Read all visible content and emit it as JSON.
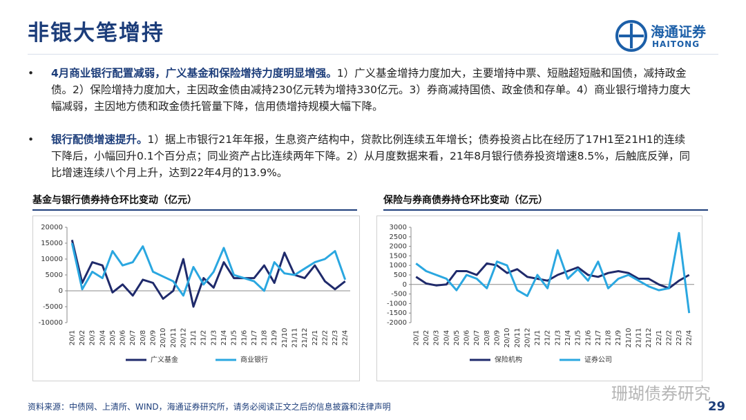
{
  "header": {
    "title": "非银大笔增持",
    "logo_cn": "海通证券",
    "logo_en": "HAITONG"
  },
  "bullets": [
    {
      "lead": "4月商业银行配置减弱，广义基金和保险增持力度明显增强。",
      "text": "1）广义基金增持力度加大，主要增持中票、短融超短融和国债，减持政金债。2）保险增持力度加大，主因政金债由减持230亿元转为增持330亿元。3）券商减持国债、政金债和存单。4）商业银行增持力度大幅减弱，主因地方债和政金债托管量下降，信用债增持规模大幅下降。"
    },
    {
      "lead": "银行配债增速提升。",
      "text": "1）据上市银行21年年报，生息资产结构中，贷款比例连续五年增长；债券投资占比在经历了17H1至21H1的连续下降后，小幅回升0.1个百分点；同业资产占比连续两年下降。2）从月度数据来看，21年8月银行债券投资增速8.5%，后触底反弹，同比增速连续八个月上升，达到22年4月的13.9%。"
    }
  ],
  "chart_data": [
    {
      "type": "line",
      "title": "基金与银行债券持仓环比变动（亿元）",
      "categories": [
        "20/1",
        "20/2",
        "20/3",
        "20/4",
        "20/5",
        "20/6",
        "20/7",
        "20/8",
        "20/9",
        "20/10",
        "20/11",
        "20/12",
        "21/1",
        "21/2",
        "21/3",
        "21/4",
        "21/5",
        "21/6",
        "21/7",
        "21/8",
        "21/9",
        "21/10",
        "21/11",
        "21/12",
        "22/1",
        "22/2",
        "22/3",
        "22/4"
      ],
      "series": [
        {
          "name": "广义基金",
          "color": "#1f2a6b",
          "values": [
            16000,
            2500,
            9000,
            8000,
            -500,
            2000,
            -1500,
            3500,
            2500,
            -2500,
            0,
            10000,
            -5000,
            4000,
            1000,
            9000,
            4000,
            4000,
            4000,
            8000,
            2500,
            12000,
            5000,
            4000,
            8000,
            3000,
            500,
            3000
          ]
        },
        {
          "name": "商业银行",
          "color": "#2aa7e0",
          "values": [
            15000,
            500,
            6000,
            4000,
            12500,
            8000,
            9000,
            14000,
            6000,
            4500,
            3000,
            -1500,
            7500,
            2000,
            6000,
            13500,
            5000,
            4000,
            3000,
            0,
            9000,
            5500,
            5000,
            7000,
            9000,
            10000,
            12500,
            3500
          ]
        }
      ],
      "ylim": [
        -10000,
        20000
      ],
      "yticks": [
        -10000,
        -5000,
        0,
        5000,
        10000,
        15000,
        20000
      ],
      "legend": "bottom"
    },
    {
      "type": "line",
      "title": "保险与券商债券持仓环比变动（亿元）",
      "categories": [
        "20/1",
        "20/2",
        "20/3",
        "20/4",
        "20/5",
        "20/6",
        "20/7",
        "20/8",
        "20/9",
        "20/10",
        "20/11",
        "20/12",
        "21/1",
        "21/2",
        "21/3",
        "21/4",
        "21/5",
        "21/6",
        "21/7",
        "21/8",
        "21/9",
        "21/10",
        "21/11",
        "21/12",
        "22/1",
        "22/2",
        "22/3",
        "22/4"
      ],
      "series": [
        {
          "name": "保险机构",
          "color": "#1f2a6b",
          "values": [
            400,
            50,
            -50,
            0,
            700,
            700,
            500,
            1100,
            1000,
            600,
            800,
            400,
            300,
            200,
            500,
            700,
            900,
            500,
            400,
            600,
            700,
            600,
            300,
            300,
            0,
            -200,
            200,
            500
          ]
        },
        {
          "name": "证券公司",
          "color": "#2aa7e0",
          "values": [
            1100,
            700,
            500,
            300,
            -300,
            500,
            300,
            -200,
            1200,
            1000,
            -300,
            -600,
            500,
            -200,
            1800,
            300,
            800,
            200,
            1200,
            -200,
            300,
            500,
            200,
            -100,
            -300,
            -200,
            2700,
            -1500
          ]
        }
      ],
      "ylim": [
        -2000,
        3000
      ],
      "yticks": [
        -2000,
        -1500,
        -1000,
        -500,
        0,
        500,
        1000,
        1500,
        2000,
        2500,
        3000
      ],
      "legend": "bottom"
    }
  ],
  "footer": {
    "source": "资料来源：中债网、上清所、WIND，海通证券研究所，请务必阅读正文之后的信息披露和法律声明",
    "page": "29",
    "watermark": "珊瑚债券研究"
  }
}
